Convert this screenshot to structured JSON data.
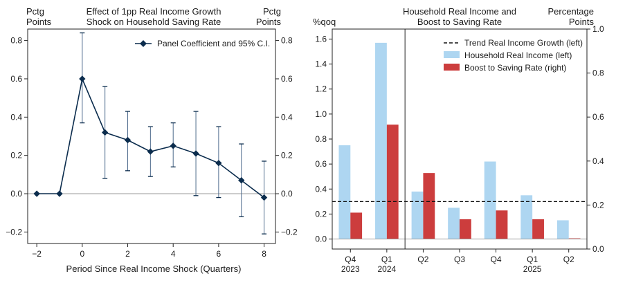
{
  "chart_data": [
    {
      "type": "line",
      "title": "Effect of 1pp Real Income Growth Shock on Household Saving Rate",
      "title_lines": [
        "Effect of 1pp Real Income Growth",
        "Shock on Household Saving Rate"
      ],
      "ylabel_left": [
        "Pctg",
        "Points"
      ],
      "ylabel_right": [
        "Pctg",
        "Points"
      ],
      "xlabel": "Period Since Real Income Shock (Quarters)",
      "xlim": [
        -2.4,
        8.5
      ],
      "ylim": [
        -0.26,
        0.86
      ],
      "xticks": [
        -2,
        0,
        2,
        4,
        6,
        8
      ],
      "xtick_labels": [
        "−2",
        "0",
        "2",
        "4",
        "6",
        "8"
      ],
      "yticks": [
        -0.2,
        0.0,
        0.2,
        0.4,
        0.6,
        0.8
      ],
      "ytick_labels": [
        "−0.2",
        "0.0",
        "0.2",
        "0.4",
        "0.6",
        "0.8"
      ],
      "legend": "Panel Coefficient and 95% C.I.",
      "legend_position": "top-right",
      "series": [
        {
          "name": "Panel Coefficient and 95% C.I.",
          "color": "#0b2c4d",
          "x": [
            -2,
            -1,
            0,
            1,
            2,
            3,
            4,
            5,
            6,
            7,
            8
          ],
          "y": [
            0.0,
            0.0,
            0.6,
            0.32,
            0.28,
            0.22,
            0.25,
            0.21,
            0.16,
            0.07,
            -0.02
          ],
          "ci_low": [
            null,
            null,
            0.37,
            0.08,
            0.12,
            0.09,
            0.14,
            -0.01,
            -0.02,
            -0.12,
            -0.21
          ],
          "ci_high": [
            null,
            null,
            0.84,
            0.56,
            0.43,
            0.35,
            0.37,
            0.43,
            0.35,
            0.26,
            0.17
          ]
        }
      ],
      "zero_line": 0
    },
    {
      "type": "bar",
      "title": "Household Real Income and Boost to Saving Rate",
      "title_lines": [
        "Household Real Income and",
        "Boost to Saving Rate"
      ],
      "ylabel_left": "%qoq",
      "ylabel_right": [
        "Percentage",
        "Points"
      ],
      "categories": [
        "Q4 2023",
        "Q1 2024",
        "Q2",
        "Q3",
        "Q4",
        "Q1 2025",
        "Q2"
      ],
      "category_labels": [
        [
          "Q4",
          "2023"
        ],
        [
          "Q1",
          "2024"
        ],
        [
          "Q2"
        ],
        [
          "Q3"
        ],
        [
          "Q4"
        ],
        [
          "Q1",
          "2025"
        ],
        [
          "Q2"
        ]
      ],
      "ylim_left": [
        -0.08,
        1.68
      ],
      "ylim_right": [
        0,
        1.0
      ],
      "yticks_left": [
        0.0,
        0.2,
        0.4,
        0.6,
        0.8,
        1.0,
        1.2,
        1.4,
        1.6
      ],
      "yticks_left_labels": [
        "0.0",
        "0.2",
        "0.4",
        "0.6",
        "0.8",
        "1.0",
        "1.2",
        "1.4",
        "1.6"
      ],
      "yticks_right": [
        0.0,
        0.2,
        0.4,
        0.6,
        0.8,
        1.0
      ],
      "yticks_right_labels": [
        "0.0",
        "0.2",
        "0.4",
        "0.6",
        "0.8",
        "1.0"
      ],
      "divider_after_category": 1,
      "trend_line": {
        "name": "Trend Real Income Growth (left)",
        "value": 0.3,
        "axis": "left"
      },
      "series": [
        {
          "name": "Household Real Income (left)",
          "axis": "left",
          "color": "#aed6f1",
          "values": [
            0.75,
            1.57,
            0.38,
            0.25,
            0.62,
            0.35,
            0.15
          ]
        },
        {
          "name": "Boost to Saving Rate (right)",
          "axis": "right",
          "color": "#cc3d3d",
          "values": [
            0.12,
            0.52,
            0.3,
            0.09,
            0.13,
            0.09,
            0.0
          ]
        }
      ],
      "legend_position": "top-right"
    }
  ]
}
